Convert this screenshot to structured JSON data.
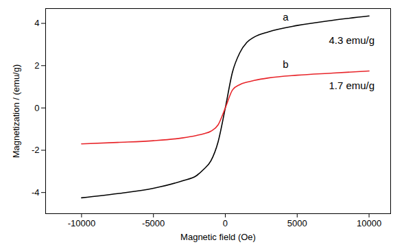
{
  "chart_data": {
    "type": "line",
    "x_label": "Magnetic field (Oe)",
    "y_label": "Magnetization / (emu/g)",
    "x": [
      -10000,
      -7500,
      -5000,
      -3000,
      -2000,
      -1500,
      -1000,
      -500,
      0,
      500,
      1000,
      1500,
      2000,
      3000,
      5000,
      7500,
      10000
    ],
    "series": [
      {
        "name": "a",
        "color": "#000000",
        "values": [
          -4.25,
          -4.05,
          -3.8,
          -3.45,
          -3.2,
          -2.9,
          -2.5,
          -1.6,
          0.0,
          1.7,
          2.6,
          3.1,
          3.35,
          3.6,
          3.9,
          4.15,
          4.35
        ]
      },
      {
        "name": "b",
        "color": "#e8252a",
        "values": [
          -1.7,
          -1.63,
          -1.55,
          -1.42,
          -1.3,
          -1.22,
          -1.1,
          -0.8,
          0.0,
          0.85,
          1.1,
          1.22,
          1.3,
          1.42,
          1.55,
          1.65,
          1.75
        ]
      }
    ],
    "annotations": [
      {
        "text": "a",
        "x": 4000,
        "y": 4.3
      },
      {
        "text": "4.3 emu/g",
        "x": 7200,
        "y": 3.2
      },
      {
        "text": "b",
        "x": 4000,
        "y": 2.05
      },
      {
        "text": "1.7 emu/g",
        "x": 7200,
        "y": 1.05
      }
    ],
    "xlim": [
      -12500,
      11500
    ],
    "xticks": [
      -10000,
      -5000,
      0,
      5000,
      10000
    ],
    "ylim": [
      -5,
      4.7
    ],
    "yticks": [
      -4,
      -2,
      0,
      2,
      4
    ],
    "grid": false
  }
}
